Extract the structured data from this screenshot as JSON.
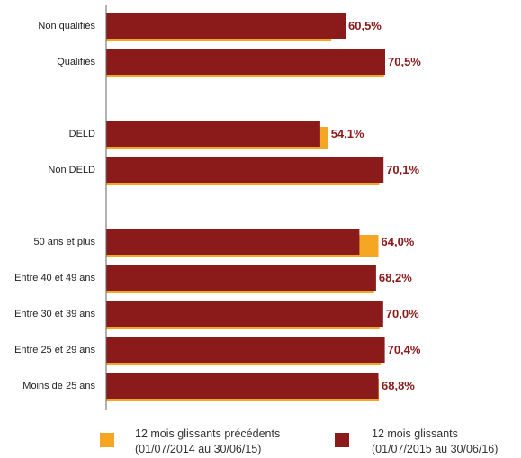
{
  "colors": {
    "current": "#8b1a1a",
    "previous": "#f5a623",
    "axis": "#666666"
  },
  "chart_data": {
    "type": "bar",
    "orientation": "horizontal",
    "value_unit": "%",
    "xlim": [
      0,
      75
    ],
    "groups": [
      [
        "Non qualifiés",
        "Qualifiés"
      ],
      [
        "DELD",
        "Non DELD"
      ],
      [
        "50 ans et plus",
        "Entre 40 et 49 ans",
        "Entre 30 et 39 ans",
        "Entre 25 et 29 ans",
        "Moins de 25 ans"
      ]
    ],
    "categories": [
      "Non qualifiés",
      "Qualifiés",
      "DELD",
      "Non DELD",
      "50 ans et plus",
      "Entre 40 et 49 ans",
      "Entre 30 et 39 ans",
      "Entre 25 et 29 ans",
      "Moins de 25 ans"
    ],
    "series": [
      {
        "name": "12 mois glissants précédents",
        "period": "(01/07/2014 au 30/06/15)",
        "color": "#f5a623",
        "values": [
          56.9,
          70.2,
          56.1,
          69.0,
          68.8,
          67.7,
          69.1,
          69.4,
          68.9
        ]
      },
      {
        "name": "12 mois glissants",
        "period": "(01/07/2015 au 30/06/16)",
        "color": "#8b1a1a",
        "values": [
          60.5,
          70.5,
          54.1,
          70.1,
          64.0,
          68.2,
          70.0,
          70.4,
          68.8
        ]
      }
    ],
    "data_labels": [
      "60,5%",
      "70,5%",
      "54,1%",
      "70,1%",
      "64,0%",
      "68,2%",
      "70,0%",
      "70,4%",
      "68,8%"
    ],
    "legend_position": "bottom"
  }
}
